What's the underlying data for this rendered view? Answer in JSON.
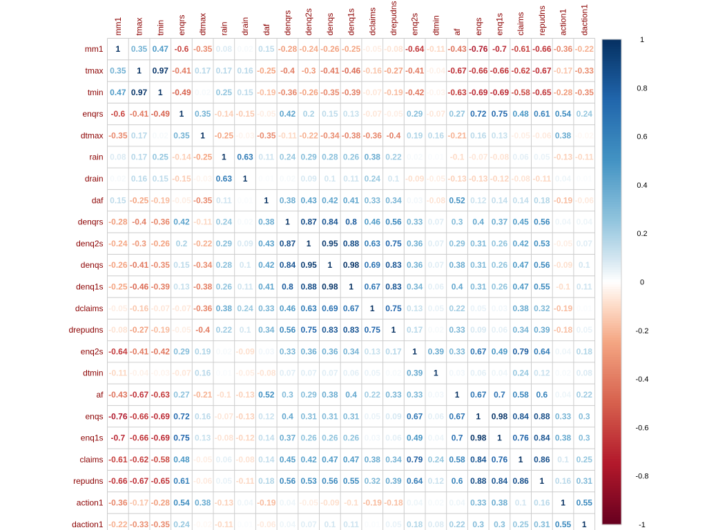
{
  "chart_data": {
    "type": "heatmap",
    "title": "",
    "variables": [
      "mm1",
      "tmax",
      "tmin",
      "enqrs",
      "dtmax",
      "rain",
      "drain",
      "daf",
      "denqrs",
      "denq2s",
      "denqs",
      "denq1s",
      "dclaims",
      "drepudns",
      "enq2s",
      "dtmin",
      "af",
      "enqs",
      "enq1s",
      "claims",
      "repudns",
      "action1",
      "daction1"
    ],
    "matrix": [
      [
        1,
        0.35,
        0.47,
        -0.6,
        -0.35,
        0.08,
        0.02,
        0.15,
        -0.28,
        -0.24,
        -0.26,
        -0.25,
        -0.05,
        -0.08,
        -0.64,
        -0.11,
        -0.43,
        -0.76,
        -0.7,
        -0.61,
        -0.66,
        -0.36,
        -0.22
      ],
      [
        0.35,
        1,
        0.97,
        -0.41,
        0.17,
        0.17,
        0.16,
        -0.25,
        -0.4,
        -0.3,
        -0.41,
        -0.46,
        -0.16,
        -0.27,
        -0.41,
        -0.04,
        -0.67,
        -0.66,
        -0.66,
        -0.62,
        -0.67,
        -0.17,
        -0.33
      ],
      [
        0.47,
        0.97,
        1,
        -0.49,
        0.02,
        0.25,
        0.15,
        -0.19,
        -0.36,
        -0.26,
        -0.35,
        -0.39,
        -0.07,
        -0.19,
        -0.42,
        -0.03,
        -0.63,
        -0.69,
        -0.69,
        -0.58,
        -0.65,
        -0.28,
        -0.35
      ],
      [
        -0.6,
        -0.41,
        -0.49,
        1,
        0.35,
        -0.14,
        -0.15,
        -0.05,
        0.42,
        0.2,
        0.15,
        0.13,
        -0.07,
        -0.05,
        0.29,
        -0.07,
        0.27,
        0.72,
        0.75,
        0.48,
        0.61,
        0.54,
        0.24
      ],
      [
        -0.35,
        0.17,
        0.02,
        0.35,
        1,
        -0.25,
        -0.03,
        -0.35,
        -0.11,
        -0.22,
        -0.34,
        -0.38,
        -0.36,
        -0.4,
        0.19,
        0.16,
        -0.21,
        0.16,
        0.13,
        -0.05,
        -0.06,
        0.38,
        -0.02
      ],
      [
        0.08,
        0.17,
        0.25,
        -0.14,
        -0.25,
        1,
        0.63,
        0.11,
        0.24,
        0.29,
        0.28,
        0.26,
        0.38,
        0.22,
        0.02,
        0.01,
        -0.1,
        -0.07,
        -0.08,
        0.06,
        0.05,
        -0.13,
        -0.11
      ],
      [
        0.02,
        0.16,
        0.15,
        -0.15,
        -0.03,
        0.63,
        1,
        0.01,
        0.02,
        0.09,
        0.1,
        0.11,
        0.24,
        0.1,
        -0.09,
        -0.05,
        -0.13,
        -0.13,
        -0.12,
        -0.08,
        -0.11,
        0.04,
        0.01
      ],
      [
        0.15,
        -0.25,
        -0.19,
        -0.05,
        -0.35,
        0.11,
        0.01,
        1,
        0.38,
        0.43,
        0.42,
        0.41,
        0.33,
        0.34,
        0.03,
        -0.08,
        0.52,
        0.12,
        0.14,
        0.14,
        0.18,
        -0.19,
        -0.06
      ],
      [
        -0.28,
        -0.4,
        -0.36,
        0.42,
        -0.11,
        0.24,
        0.02,
        0.38,
        1,
        0.87,
        0.84,
        0.8,
        0.46,
        0.56,
        0.33,
        0.07,
        0.3,
        0.4,
        0.37,
        0.45,
        0.56,
        0.04,
        0.04
      ],
      [
        -0.24,
        -0.3,
        -0.26,
        0.2,
        -0.22,
        0.29,
        0.09,
        0.43,
        0.87,
        1,
        0.95,
        0.88,
        0.63,
        0.75,
        0.36,
        0.07,
        0.29,
        0.31,
        0.26,
        0.42,
        0.53,
        -0.05,
        0.07
      ],
      [
        -0.26,
        -0.41,
        -0.35,
        0.15,
        -0.34,
        0.28,
        0.1,
        0.42,
        0.84,
        0.95,
        1,
        0.98,
        0.69,
        0.83,
        0.36,
        0.07,
        0.38,
        0.31,
        0.26,
        0.47,
        0.56,
        -0.09,
        0.1
      ],
      [
        -0.25,
        -0.46,
        -0.39,
        0.13,
        -0.38,
        0.26,
        0.11,
        0.41,
        0.8,
        0.88,
        0.98,
        1,
        0.67,
        0.83,
        0.34,
        0.06,
        0.4,
        0.31,
        0.26,
        0.47,
        0.55,
        -0.1,
        0.11
      ],
      [
        -0.05,
        -0.16,
        -0.07,
        -0.07,
        -0.36,
        0.38,
        0.24,
        0.33,
        0.46,
        0.63,
        0.69,
        0.67,
        1,
        0.75,
        0.13,
        0.05,
        0.22,
        0.05,
        0.03,
        0.38,
        0.32,
        -0.19,
        0.01
      ],
      [
        -0.08,
        -0.27,
        -0.19,
        -0.05,
        -0.4,
        0.22,
        0.1,
        0.34,
        0.56,
        0.75,
        0.83,
        0.83,
        0.75,
        1,
        0.17,
        0.02,
        0.33,
        0.09,
        0.06,
        0.34,
        0.39,
        -0.18,
        0.05
      ],
      [
        -0.64,
        -0.41,
        -0.42,
        0.29,
        0.19,
        0.02,
        -0.09,
        0.03,
        0.33,
        0.36,
        0.36,
        0.34,
        0.13,
        0.17,
        1,
        0.39,
        0.33,
        0.67,
        0.49,
        0.79,
        0.64,
        0.04,
        0.18
      ],
      [
        -0.11,
        -0.04,
        -0.03,
        -0.07,
        0.16,
        0.01,
        -0.05,
        -0.08,
        0.07,
        0.07,
        0.07,
        0.06,
        0.05,
        0.02,
        0.39,
        1,
        0.03,
        0.06,
        0.04,
        0.24,
        0.12,
        0.02,
        0.08
      ],
      [
        -0.43,
        -0.67,
        -0.63,
        0.27,
        -0.21,
        -0.1,
        -0.13,
        0.52,
        0.3,
        0.29,
        0.38,
        0.4,
        0.22,
        0.33,
        0.33,
        0.03,
        1,
        0.67,
        0.7,
        0.58,
        0.6,
        0.04,
        0.22
      ],
      [
        -0.76,
        -0.66,
        -0.69,
        0.72,
        0.16,
        -0.07,
        -0.13,
        0.12,
        0.4,
        0.31,
        0.31,
        0.31,
        0.05,
        0.09,
        0.67,
        0.06,
        0.67,
        1,
        0.98,
        0.84,
        0.88,
        0.33,
        0.3
      ],
      [
        -0.7,
        -0.66,
        -0.69,
        0.75,
        0.13,
        -0.08,
        -0.12,
        0.14,
        0.37,
        0.26,
        0.26,
        0.26,
        0.03,
        0.06,
        0.49,
        0.04,
        0.7,
        0.98,
        1,
        0.76,
        0.84,
        0.38,
        0.3
      ],
      [
        -0.61,
        -0.62,
        -0.58,
        0.48,
        -0.05,
        0.06,
        -0.08,
        0.14,
        0.45,
        0.42,
        0.47,
        0.47,
        0.38,
        0.34,
        0.79,
        0.24,
        0.58,
        0.84,
        0.76,
        1,
        0.86,
        0.1,
        0.25
      ],
      [
        -0.66,
        -0.67,
        -0.65,
        0.61,
        -0.06,
        0.05,
        -0.11,
        0.18,
        0.56,
        0.53,
        0.56,
        0.55,
        0.32,
        0.39,
        0.64,
        0.12,
        0.6,
        0.88,
        0.84,
        0.86,
        1,
        0.16,
        0.31
      ],
      [
        -0.36,
        -0.17,
        -0.28,
        0.54,
        0.38,
        -0.13,
        0.04,
        -0.19,
        0.04,
        -0.05,
        -0.09,
        -0.1,
        -0.19,
        -0.18,
        0.04,
        0.02,
        0.04,
        0.33,
        0.38,
        0.1,
        0.16,
        1,
        0.55
      ],
      [
        -0.22,
        -0.33,
        -0.35,
        0.24,
        -0.02,
        -0.11,
        0.01,
        -0.06,
        0.04,
        0.07,
        0.1,
        0.11,
        0.01,
        0.05,
        0.18,
        0.08,
        0.22,
        0.3,
        0.3,
        0.25,
        0.31,
        0.55,
        1
      ]
    ],
    "colorbar": {
      "range": [
        -1,
        1
      ],
      "ticks": [
        "1",
        "0.8",
        "0.6",
        "0.4",
        "0.2",
        "0",
        "-0.2",
        "-0.4",
        "-0.6",
        "-0.8",
        "-1"
      ],
      "colors": {
        "negative": "#67001f",
        "zero": "#ffffff",
        "positive": "#053061"
      }
    },
    "label_color": "#8b0000",
    "grid": true
  }
}
